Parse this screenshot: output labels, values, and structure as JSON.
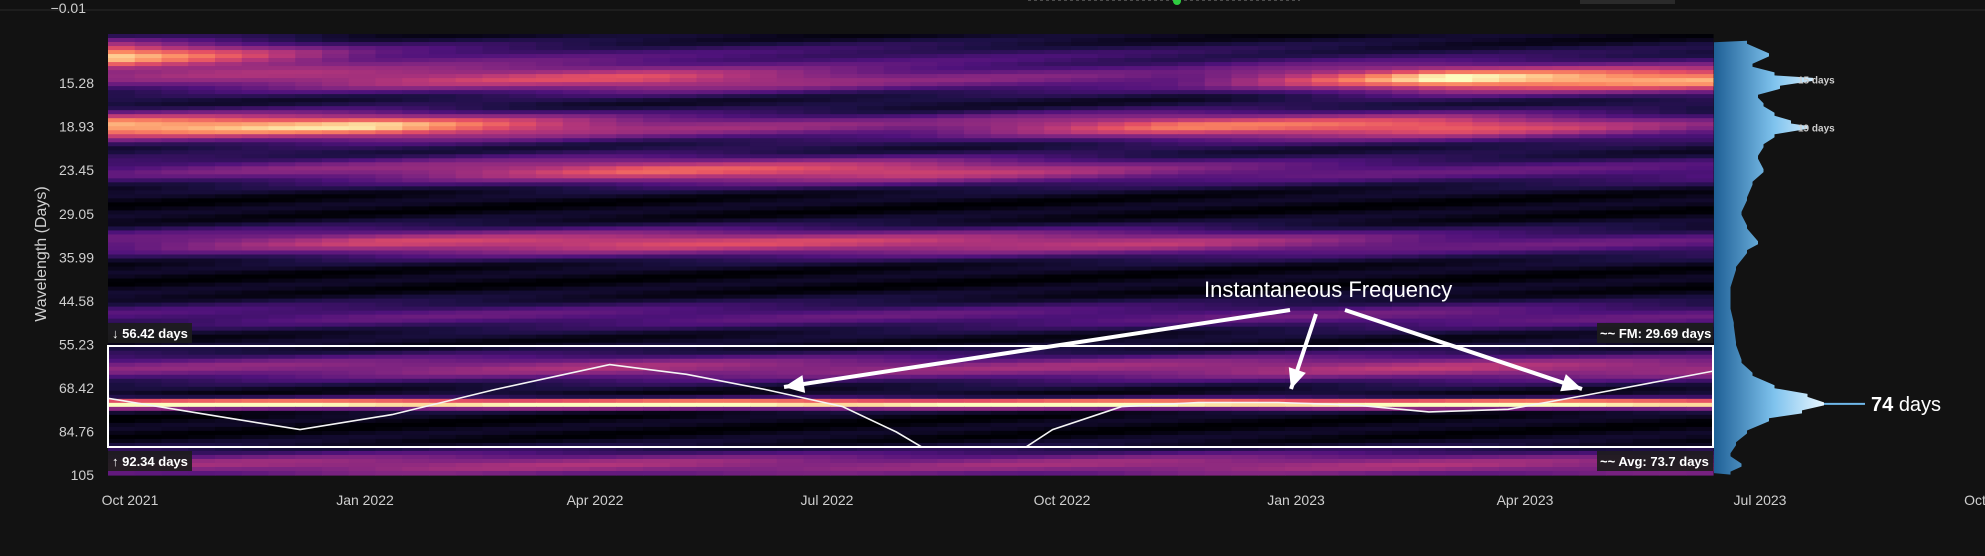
{
  "chart_data": {
    "type": "heatmap",
    "title": "",
    "ylabel": "Wavelength (Days)",
    "xlabel": "",
    "y_ticks": [
      "15.28",
      "18.93",
      "23.45",
      "29.05",
      "35.99",
      "44.58",
      "55.23",
      "68.42",
      "84.76",
      "105"
    ],
    "y_scale": "log",
    "y_range_days": [
      12,
      105
    ],
    "x_ticks": [
      "Oct 2021",
      "Jan 2022",
      "Apr 2022",
      "Jul 2022",
      "Oct 2022",
      "Jan 2023",
      "Apr 2023",
      "Jul 2023",
      "Oct"
    ],
    "top_partial_tick": "−0.01",
    "x_range": [
      "2021-10-01",
      "2023-06-20"
    ],
    "colormap": "magma",
    "power_bands": [
      {
        "wavelength": 13.3,
        "intensity": [
          0.9,
          0.3,
          0.2,
          0.2,
          0.15,
          0.1,
          0.1
        ]
      },
      {
        "wavelength": 15.0,
        "intensity": [
          0.35,
          0.55,
          0.65,
          0.4,
          0.35,
          0.95,
          0.85
        ]
      },
      {
        "wavelength": 18.9,
        "intensity": [
          0.9,
          0.9,
          0.5,
          0.4,
          0.75,
          0.75,
          0.4
        ]
      },
      {
        "wavelength": 23.5,
        "intensity": [
          0.3,
          0.45,
          0.7,
          0.65,
          0.4,
          0.3,
          0.3
        ]
      },
      {
        "wavelength": 33.5,
        "intensity": [
          0.35,
          0.6,
          0.65,
          0.6,
          0.55,
          0.35,
          0.3
        ]
      },
      {
        "wavelength": 48.0,
        "intensity": [
          0.25,
          0.3,
          0.3,
          0.3,
          0.3,
          0.35,
          0.3
        ]
      },
      {
        "wavelength": 62.0,
        "intensity": [
          0.4,
          0.45,
          0.5,
          0.45,
          0.5,
          0.55,
          0.5
        ]
      },
      {
        "wavelength": 74.0,
        "intensity": [
          1.0,
          1.0,
          1.0,
          1.0,
          1.0,
          1.0,
          1.0
        ]
      },
      {
        "wavelength": 100.0,
        "intensity": [
          0.45,
          0.5,
          0.5,
          0.45,
          0.5,
          0.5,
          0.45
        ]
      }
    ],
    "band_box": {
      "upper_days": 56.42,
      "lower_days": 92.34
    },
    "instantaneous_frequency": {
      "x": [
        "2021-10-01",
        "2021-11-15",
        "2021-12-15",
        "2022-01-20",
        "2022-03-01",
        "2022-04-15",
        "2022-05-15",
        "2022-06-15",
        "2022-07-15",
        "2022-08-05",
        "2022-08-20",
        "2022-09-20",
        "2022-10-05",
        "2022-11-01",
        "2022-12-01",
        "2023-01-01",
        "2023-02-01",
        "2023-03-01",
        "2023-04-01",
        "2023-05-01",
        "2023-06-20"
      ],
      "y": [
        72,
        79,
        84,
        78,
        69,
        61,
        64,
        69,
        75,
        85,
        95,
        95,
        84,
        75,
        73.5,
        73.5,
        74.5,
        77,
        76,
        71,
        63
      ]
    },
    "labels": {
      "upper": "↓ 56.42 days",
      "lower": "↑ 92.34 days",
      "fm": "FM: 29.69 days",
      "fm_prefix": "~~",
      "avg": "Avg: 73.7 days",
      "avg_prefix": "~~"
    },
    "annotation": "Instantaneous Frequency",
    "side_spectrum": {
      "peaks": [
        {
          "wavelength": 15,
          "label": "15 days"
        },
        {
          "wavelength": 19,
          "label": "19 days"
        }
      ],
      "main_peak": {
        "wavelength": 74,
        "value_label": "74",
        "unit_label": "days"
      },
      "profile": [
        [
          12.5,
          0.3
        ],
        [
          13.3,
          0.5
        ],
        [
          14.0,
          0.35
        ],
        [
          14.6,
          0.55
        ],
        [
          15.0,
          0.9
        ],
        [
          15.6,
          0.6
        ],
        [
          16.3,
          0.4
        ],
        [
          17.0,
          0.45
        ],
        [
          17.8,
          0.55
        ],
        [
          18.5,
          0.7
        ],
        [
          19.0,
          0.85
        ],
        [
          19.8,
          0.55
        ],
        [
          20.8,
          0.45
        ],
        [
          22.0,
          0.4
        ],
        [
          23.5,
          0.45
        ],
        [
          25.0,
          0.35
        ],
        [
          27.0,
          0.3
        ],
        [
          29.0,
          0.25
        ],
        [
          31.0,
          0.3
        ],
        [
          33.5,
          0.4
        ],
        [
          35.0,
          0.3
        ],
        [
          38.0,
          0.2
        ],
        [
          42.0,
          0.15
        ],
        [
          46.0,
          0.15
        ],
        [
          50.0,
          0.18
        ],
        [
          55.0,
          0.2
        ],
        [
          60.0,
          0.25
        ],
        [
          64.0,
          0.35
        ],
        [
          68.0,
          0.55
        ],
        [
          71.0,
          0.85
        ],
        [
          74.0,
          1.0
        ],
        [
          77.0,
          0.8
        ],
        [
          80.0,
          0.5
        ],
        [
          85.0,
          0.3
        ],
        [
          90.0,
          0.2
        ],
        [
          95.0,
          0.15
        ],
        [
          100.0,
          0.25
        ],
        [
          104.0,
          0.15
        ]
      ]
    }
  }
}
